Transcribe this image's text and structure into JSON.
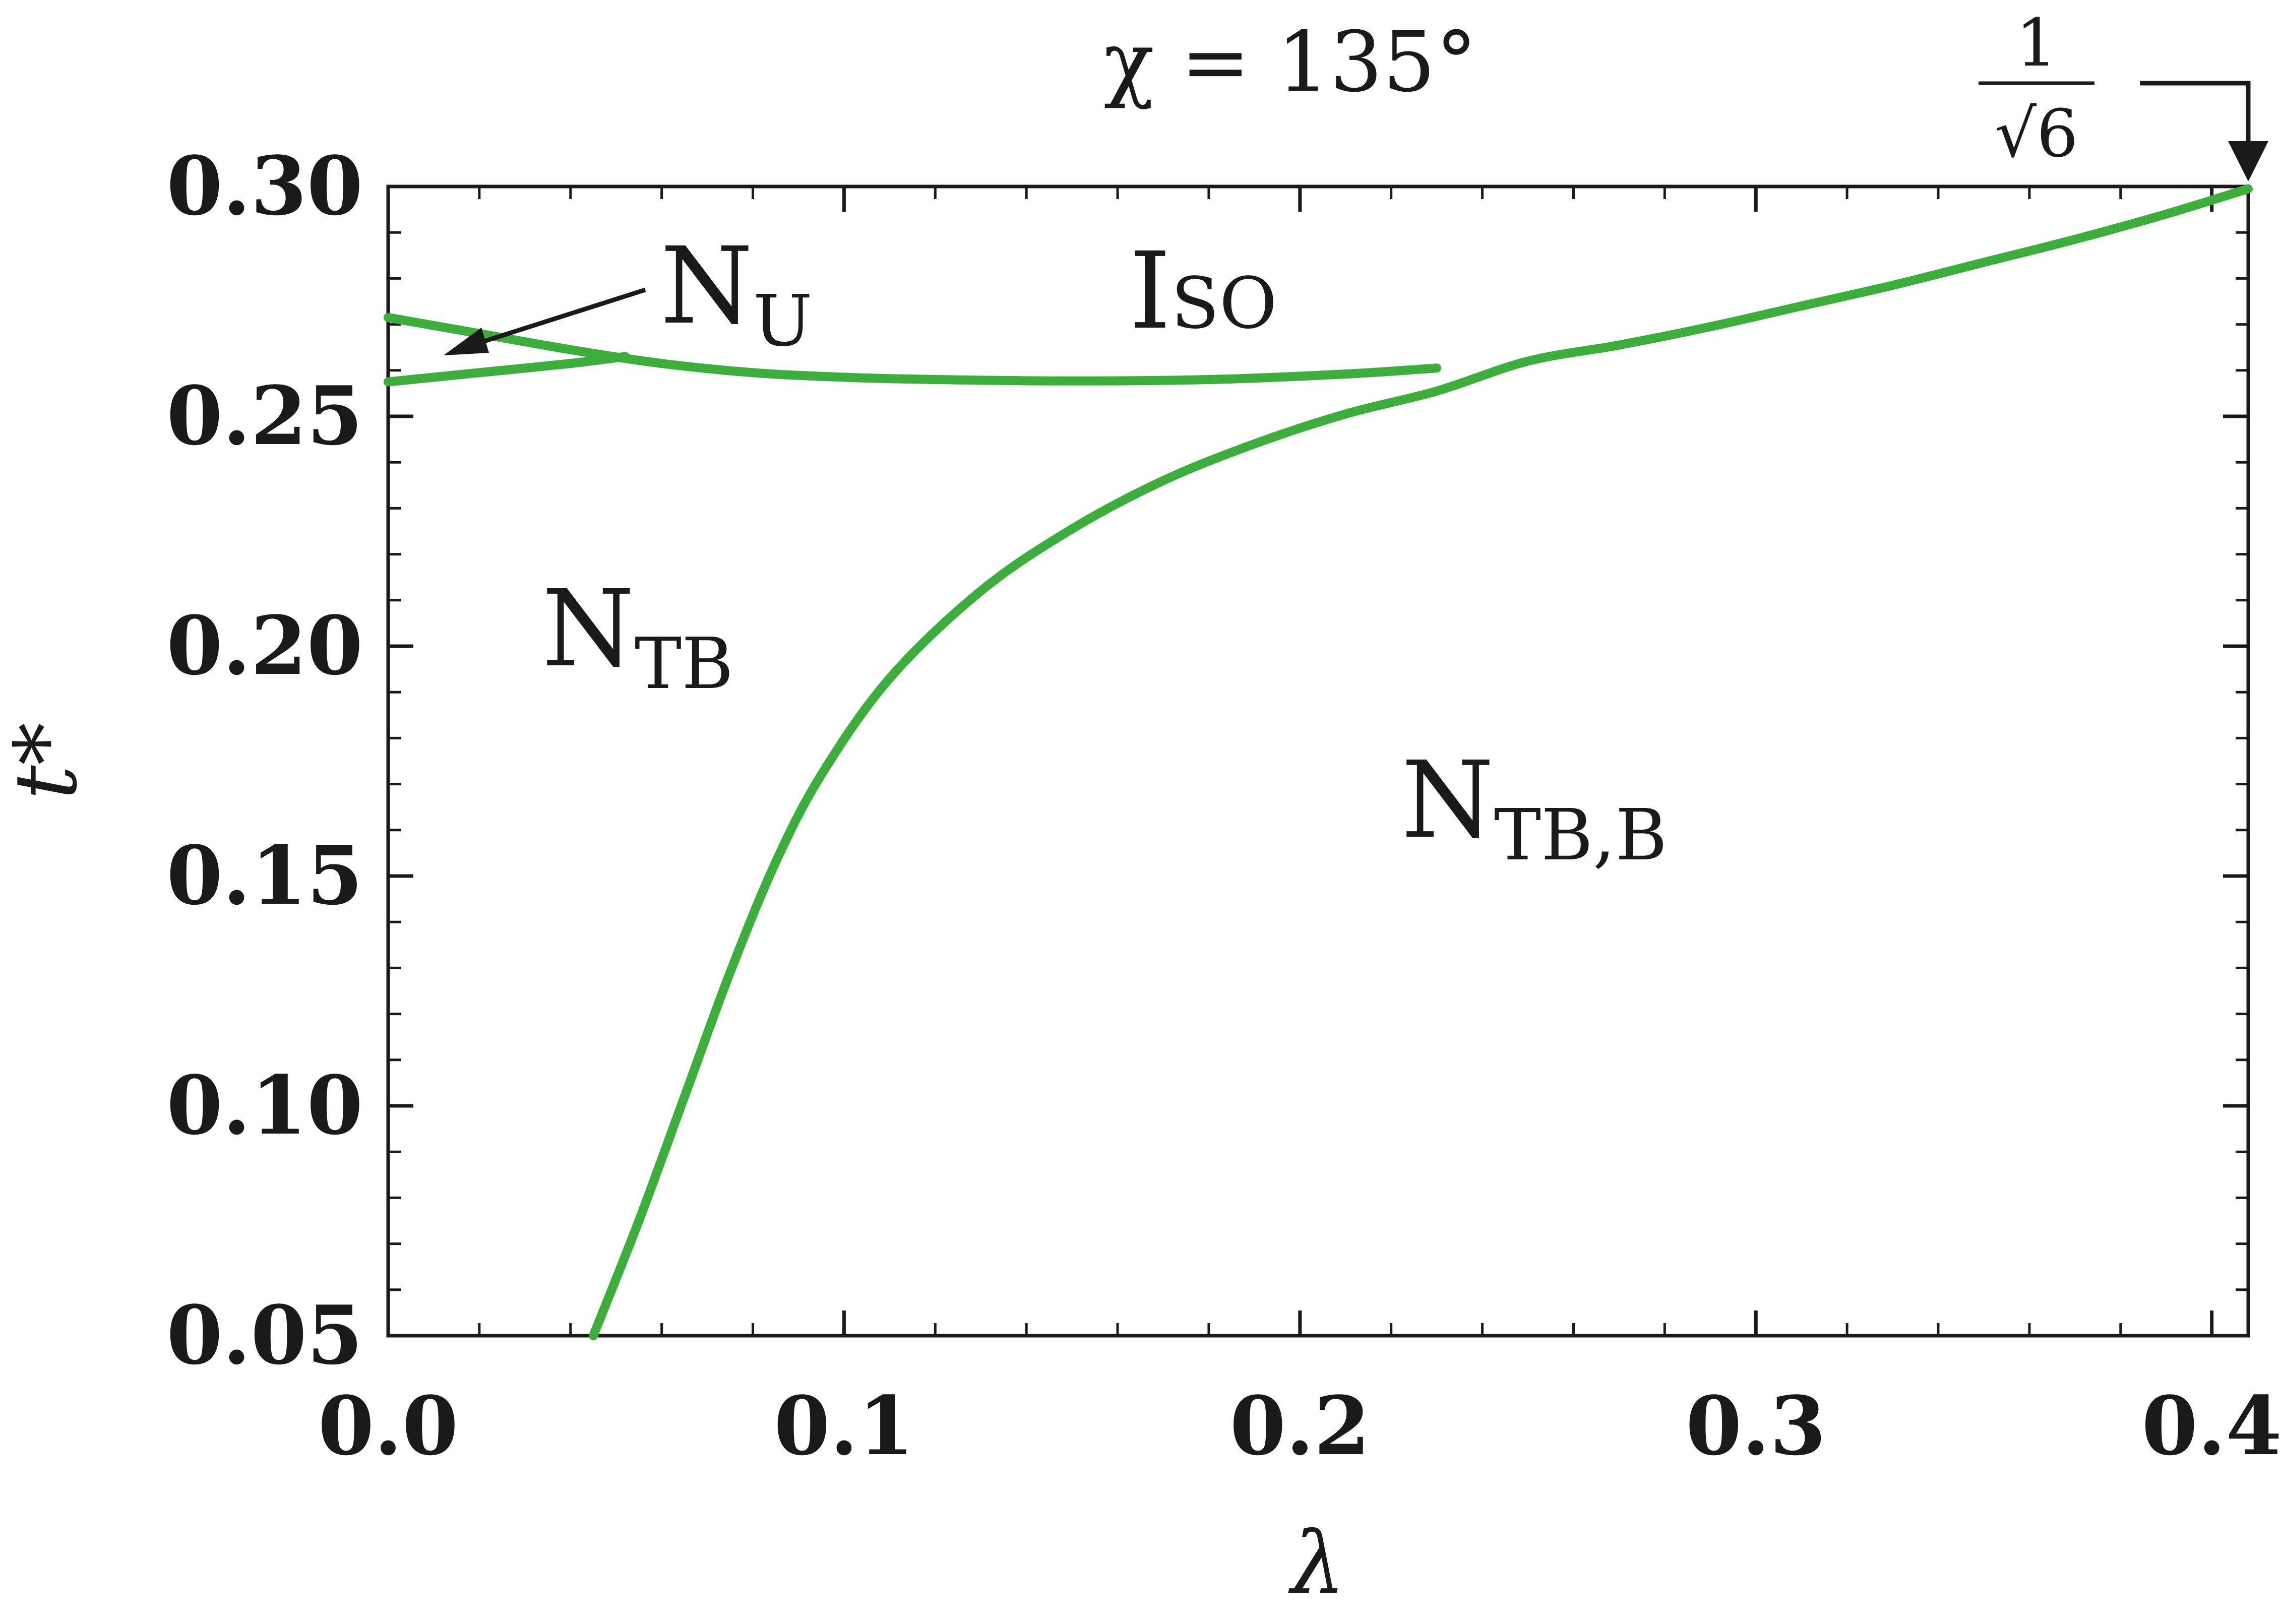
{
  "chart_data": {
    "type": "line",
    "title": "χ = 135°",
    "xlabel": "λ",
    "ylabel": "t*",
    "xlim": [
      0.0,
      0.408
    ],
    "ylim": [
      0.05,
      0.3
    ],
    "x_ticks": [
      0.0,
      0.1,
      0.2,
      0.3,
      0.4
    ],
    "x_tick_labels": [
      "0.0",
      "0.1",
      "0.2",
      "0.3",
      "0.4"
    ],
    "y_ticks": [
      0.05,
      0.1,
      0.15,
      0.2,
      0.25,
      0.3
    ],
    "y_tick_labels": [
      "0.05",
      "0.10",
      "0.15",
      "0.20",
      "0.25",
      "0.30"
    ],
    "grid": false,
    "line_color": "#3cae3c",
    "series": [
      {
        "points": [
          [
            0.0,
            0.2715
          ],
          [
            0.02,
            0.268
          ],
          [
            0.04,
            0.2645
          ],
          [
            0.06,
            0.2615
          ],
          [
            0.08,
            0.2595
          ],
          [
            0.1,
            0.2585
          ],
          [
            0.12,
            0.258
          ],
          [
            0.15,
            0.2577
          ],
          [
            0.18,
            0.258
          ],
          [
            0.21,
            0.2592
          ],
          [
            0.23,
            0.2605
          ]
        ]
      },
      {
        "points": [
          [
            0.0,
            0.2575
          ],
          [
            0.02,
            0.2595
          ],
          [
            0.04,
            0.2615
          ],
          [
            0.052,
            0.263
          ]
        ]
      },
      {
        "points": [
          [
            0.045,
            0.05
          ],
          [
            0.055,
            0.075
          ],
          [
            0.065,
            0.102
          ],
          [
            0.075,
            0.129
          ],
          [
            0.085,
            0.153
          ],
          [
            0.095,
            0.172
          ],
          [
            0.11,
            0.193
          ],
          [
            0.13,
            0.212
          ],
          [
            0.15,
            0.2255
          ],
          [
            0.17,
            0.236
          ],
          [
            0.19,
            0.244
          ],
          [
            0.21,
            0.2505
          ],
          [
            0.23,
            0.2555
          ],
          [
            0.25,
            0.262
          ],
          [
            0.27,
            0.2655
          ],
          [
            0.29,
            0.2695
          ],
          [
            0.31,
            0.274
          ],
          [
            0.33,
            0.2785
          ],
          [
            0.35,
            0.2835
          ],
          [
            0.37,
            0.2885
          ],
          [
            0.39,
            0.294
          ],
          [
            0.408,
            0.2995
          ]
        ]
      }
    ],
    "annotations": {
      "iso": "I",
      "iso_sub": "SO",
      "nu": "N",
      "nu_sub": "U",
      "ntb": "N",
      "ntb_sub": "TB",
      "ntbb": "N",
      "ntbb_sub": "TB,B",
      "frac_num": "1",
      "frac_den": "√6"
    }
  }
}
